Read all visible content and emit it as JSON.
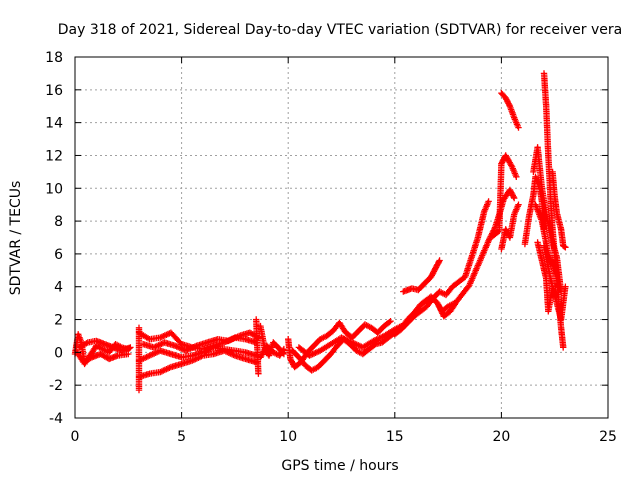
{
  "chart_data": {
    "type": "scatter",
    "title": "Day 318 of 2021, Sidereal Day-to-day VTEC variation (SDTVAR) for receiver vera",
    "xlabel": "GPS time / hours",
    "ylabel": "SDTVAR / TECUs",
    "xlim": [
      0,
      25
    ],
    "ylim": [
      -4,
      18
    ],
    "xticks": [
      0,
      5,
      10,
      15,
      20,
      25
    ],
    "yticks": [
      -4,
      -2,
      0,
      2,
      4,
      6,
      8,
      10,
      12,
      14,
      16,
      18
    ],
    "grid": true,
    "marker": "+",
    "series": [
      {
        "name": "SDTVAR",
        "color": "#ff0000",
        "segments": [
          [
            [
              0.0,
              -0.1
            ],
            [
              0.15,
              1.1
            ],
            [
              0.3,
              0.6
            ],
            [
              0.45,
              -0.7
            ],
            [
              0.7,
              -0.2
            ],
            [
              1.0,
              0.4
            ],
            [
              1.3,
              0.2
            ],
            [
              1.6,
              0.0
            ],
            [
              1.9,
              0.5
            ],
            [
              2.2,
              0.3
            ],
            [
              2.5,
              0.2
            ],
            [
              2.6,
              0.3
            ]
          ],
          [
            [
              0.1,
              0.0
            ],
            [
              0.4,
              -0.6
            ],
            [
              0.8,
              -0.3
            ],
            [
              1.2,
              -0.1
            ],
            [
              1.6,
              -0.4
            ],
            [
              2.0,
              -0.2
            ],
            [
              2.5,
              -0.1
            ]
          ],
          [
            [
              0.2,
              0.3
            ],
            [
              0.6,
              0.6
            ],
            [
              1.0,
              0.7
            ],
            [
              1.4,
              0.5
            ],
            [
              1.8,
              0.3
            ],
            [
              2.2,
              0.1
            ],
            [
              2.6,
              0.3
            ]
          ],
          [
            [
              3.0,
              1.5
            ],
            [
              3.0,
              -2.3
            ]
          ],
          [
            [
              3.0,
              1.2
            ],
            [
              3.5,
              0.8
            ],
            [
              4.0,
              0.9
            ],
            [
              4.5,
              1.2
            ],
            [
              5.0,
              0.5
            ],
            [
              5.5,
              0.3
            ],
            [
              6.0,
              0.2
            ],
            [
              6.5,
              0.4
            ],
            [
              7.0,
              0.6
            ],
            [
              7.5,
              0.9
            ],
            [
              8.0,
              0.8
            ],
            [
              8.5,
              0.6
            ]
          ],
          [
            [
              3.0,
              -0.5
            ],
            [
              3.5,
              -0.2
            ],
            [
              4.0,
              0.1
            ],
            [
              4.5,
              -0.1
            ],
            [
              5.0,
              -0.3
            ],
            [
              5.5,
              -0.2
            ],
            [
              6.0,
              0.0
            ],
            [
              6.5,
              0.3
            ],
            [
              7.0,
              0.2
            ],
            [
              7.5,
              0.1
            ],
            [
              8.0,
              0.0
            ],
            [
              8.5,
              -0.2
            ]
          ],
          [
            [
              3.0,
              -1.5
            ],
            [
              3.5,
              -1.3
            ],
            [
              4.0,
              -1.2
            ],
            [
              4.5,
              -0.9
            ],
            [
              5.0,
              -0.7
            ],
            [
              5.5,
              -0.5
            ],
            [
              6.0,
              -0.2
            ],
            [
              6.5,
              -0.1
            ],
            [
              7.0,
              0.1
            ],
            [
              7.5,
              -0.2
            ],
            [
              8.0,
              -0.4
            ],
            [
              8.5,
              -0.6
            ]
          ],
          [
            [
              3.2,
              0.5
            ],
            [
              3.7,
              0.3
            ],
            [
              4.2,
              0.6
            ],
            [
              4.7,
              0.4
            ],
            [
              5.2,
              0.1
            ],
            [
              5.7,
              0.4
            ],
            [
              6.2,
              0.6
            ],
            [
              6.7,
              0.8
            ],
            [
              7.2,
              0.7
            ],
            [
              7.7,
              1.0
            ],
            [
              8.2,
              1.2
            ],
            [
              8.6,
              0.9
            ]
          ],
          [
            [
              8.5,
              2.0
            ],
            [
              8.6,
              -1.3
            ]
          ],
          [
            [
              8.7,
              1.6
            ],
            [
              8.9,
              0.2
            ],
            [
              9.1,
              -0.2
            ],
            [
              9.3,
              0.6
            ],
            [
              9.6,
              0.2
            ],
            [
              9.8,
              -0.1
            ]
          ],
          [
            [
              8.7,
              -0.3
            ],
            [
              9.0,
              0.4
            ],
            [
              9.3,
              0.0
            ],
            [
              9.6,
              -0.2
            ],
            [
              9.8,
              0.2
            ]
          ],
          [
            [
              10.0,
              0.8
            ],
            [
              10.1,
              -0.4
            ],
            [
              10.3,
              -0.9
            ],
            [
              10.6,
              -0.6
            ],
            [
              10.9,
              0.0
            ],
            [
              11.2,
              0.4
            ],
            [
              11.5,
              0.8
            ],
            [
              11.8,
              1.0
            ],
            [
              12.1,
              1.3
            ],
            [
              12.4,
              1.8
            ],
            [
              12.7,
              1.2
            ],
            [
              13.0,
              0.9
            ],
            [
              13.3,
              1.3
            ],
            [
              13.6,
              1.7
            ],
            [
              13.9,
              1.5
            ],
            [
              14.2,
              1.2
            ],
            [
              14.5,
              1.6
            ],
            [
              14.8,
              1.9
            ]
          ],
          [
            [
              10.2,
              0.1
            ],
            [
              10.5,
              -0.3
            ],
            [
              10.8,
              -0.8
            ],
            [
              11.1,
              -1.1
            ],
            [
              11.4,
              -0.9
            ],
            [
              11.7,
              -0.5
            ],
            [
              12.0,
              -0.1
            ],
            [
              12.3,
              0.4
            ],
            [
              12.6,
              0.8
            ],
            [
              12.9,
              0.5
            ],
            [
              13.2,
              0.1
            ],
            [
              13.5,
              -0.1
            ],
            [
              13.8,
              0.2
            ],
            [
              14.1,
              0.5
            ],
            [
              14.4,
              0.6
            ],
            [
              14.7,
              0.9
            ],
            [
              15.0,
              1.2
            ]
          ],
          [
            [
              10.5,
              0.3
            ],
            [
              11.0,
              -0.2
            ],
            [
              11.5,
              0.1
            ],
            [
              12.0,
              0.5
            ],
            [
              12.5,
              0.9
            ],
            [
              13.0,
              0.6
            ],
            [
              13.5,
              0.3
            ],
            [
              14.0,
              0.7
            ],
            [
              14.5,
              1.0
            ],
            [
              15.0,
              1.4
            ],
            [
              15.3,
              1.6
            ]
          ],
          [
            [
              15.0,
              1.1
            ],
            [
              15.3,
              1.4
            ],
            [
              15.6,
              1.8
            ],
            [
              15.9,
              2.2
            ],
            [
              16.2,
              2.5
            ],
            [
              16.5,
              2.8
            ],
            [
              16.8,
              3.3
            ],
            [
              17.1,
              3.7
            ],
            [
              17.4,
              3.5
            ],
            [
              17.7,
              4.0
            ],
            [
              18.0,
              4.3
            ],
            [
              18.3,
              4.6
            ],
            [
              18.6,
              5.8
            ],
            [
              18.9,
              7.0
            ],
            [
              19.2,
              8.6
            ],
            [
              19.4,
              9.2
            ]
          ],
          [
            [
              15.3,
              1.5
            ],
            [
              15.6,
              2.0
            ],
            [
              15.9,
              2.4
            ],
            [
              16.2,
              2.9
            ],
            [
              16.5,
              3.2
            ],
            [
              16.7,
              3.4
            ],
            [
              17.0,
              3.0
            ],
            [
              17.2,
              2.5
            ],
            [
              17.5,
              2.8
            ],
            [
              17.8,
              3.0
            ]
          ],
          [
            [
              15.4,
              3.7
            ],
            [
              15.8,
              3.9
            ],
            [
              16.1,
              3.8
            ],
            [
              16.4,
              4.2
            ],
            [
              16.7,
              4.6
            ],
            [
              16.9,
              5.1
            ],
            [
              17.1,
              5.6
            ]
          ],
          [
            [
              17.0,
              3.0
            ],
            [
              17.3,
              2.2
            ],
            [
              17.6,
              2.5
            ],
            [
              17.9,
              3.1
            ],
            [
              18.2,
              3.6
            ],
            [
              18.5,
              4.1
            ],
            [
              18.8,
              5.0
            ],
            [
              19.1,
              5.9
            ],
            [
              19.4,
              6.8
            ],
            [
              19.7,
              7.6
            ],
            [
              19.9,
              8.4
            ],
            [
              20.1,
              9.3
            ],
            [
              20.4,
              9.9
            ],
            [
              20.6,
              9.4
            ]
          ],
          [
            [
              19.6,
              7.1
            ],
            [
              19.9,
              7.4
            ],
            [
              20.0,
              11.5
            ],
            [
              20.2,
              12.0
            ],
            [
              20.5,
              11.3
            ],
            [
              20.7,
              10.7
            ]
          ],
          [
            [
              20.0,
              6.3
            ],
            [
              20.2,
              7.5
            ],
            [
              20.4,
              7.0
            ],
            [
              20.6,
              8.4
            ],
            [
              20.8,
              9.0
            ]
          ],
          [
            [
              20.0,
              15.8
            ],
            [
              20.2,
              15.5
            ],
            [
              20.4,
              15.0
            ],
            [
              20.6,
              14.3
            ],
            [
              20.8,
              13.7
            ]
          ],
          [
            [
              21.1,
              6.6
            ],
            [
              21.3,
              8.3
            ],
            [
              21.5,
              9.6
            ],
            [
              21.6,
              10.7
            ],
            [
              21.8,
              10.0
            ],
            [
              21.9,
              9.2
            ],
            [
              22.0,
              7.5
            ]
          ],
          [
            [
              21.5,
              11.0
            ],
            [
              21.7,
              12.5
            ],
            [
              21.9,
              10.0
            ],
            [
              22.1,
              8.5
            ],
            [
              22.3,
              7.1
            ],
            [
              22.6,
              5.8
            ],
            [
              22.8,
              3.7
            ]
          ],
          [
            [
              21.7,
              6.7
            ],
            [
              21.9,
              5.6
            ],
            [
              22.1,
              4.5
            ],
            [
              22.2,
              2.5
            ],
            [
              22.4,
              4.0
            ]
          ],
          [
            [
              22.0,
              17.0
            ],
            [
              22.1,
              15.0
            ],
            [
              22.2,
              12.0
            ],
            [
              22.3,
              9.5
            ],
            [
              22.4,
              7.5
            ],
            [
              22.5,
              6.0
            ],
            [
              22.6,
              4.5
            ],
            [
              22.7,
              3.0
            ],
            [
              22.8,
              1.5
            ],
            [
              22.9,
              0.3
            ]
          ],
          [
            [
              21.6,
              9.0
            ],
            [
              21.9,
              8.0
            ],
            [
              22.2,
              6.0
            ],
            [
              22.5,
              5.0
            ],
            [
              22.7,
              4.0
            ]
          ],
          [
            [
              22.4,
              11.0
            ],
            [
              22.5,
              9.5
            ],
            [
              22.6,
              8.5
            ],
            [
              22.8,
              7.5
            ],
            [
              22.9,
              6.5
            ],
            [
              23.0,
              6.4
            ]
          ],
          [
            [
              22.0,
              6.5
            ],
            [
              22.3,
              4.5
            ],
            [
              22.6,
              3.0
            ],
            [
              22.8,
              2.0
            ],
            [
              23.0,
              4.0
            ]
          ]
        ]
      }
    ]
  }
}
